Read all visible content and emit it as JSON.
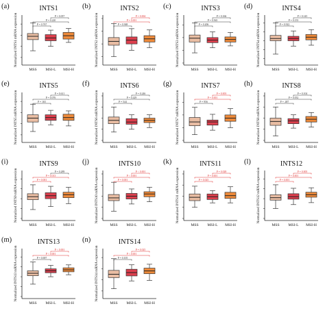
{
  "colors": {
    "mss": "#e9bda3",
    "msil": "#dc3f4d",
    "msih": "#ee8a3a",
    "sig": "#e03030",
    "nonsig": "#333333"
  },
  "chart_data": [
    {
      "type": "boxplot",
      "panel": "(a)",
      "title": "INTS1",
      "ylabel": "Normalized INTS1 mRNA expression",
      "categories": [
        "MSS",
        "MSI-L",
        "MSI-H"
      ],
      "ylim": [
        9,
        17
      ],
      "series": [
        {
          "name": "MSS",
          "whisker_low": 11.2,
          "q1": 13.2,
          "median": 13.8,
          "q3": 14.3,
          "whisker_high": 16.2
        },
        {
          "name": "MSI-L",
          "whisker_low": 12.0,
          "q1": 13.0,
          "median": 13.5,
          "q3": 14.1,
          "whisker_high": 14.9
        },
        {
          "name": "MSI-H",
          "whisker_low": 12.7,
          "q1": 13.3,
          "median": 13.9,
          "q3": 14.5,
          "whisker_high": 15.2
        }
      ],
      "comparisons": [
        {
          "pair": "MSS vs MSI-L",
          "label": "P = 0.767",
          "significant": false
        },
        {
          "pair": "MSS vs MSI-H",
          "label": "P = 0.220",
          "significant": false
        },
        {
          "pair": "MSI-L vs MSI-H",
          "label": "P = 0.057",
          "significant": false
        }
      ]
    },
    {
      "type": "boxplot",
      "panel": "(b)",
      "title": "INTS2",
      "ylabel": "Normalized INTS2 mRNA expression",
      "categories": [
        "MSS",
        "MSI-L",
        "MSI-H"
      ],
      "ylim": [
        7,
        14
      ],
      "series": [
        {
          "name": "MSS",
          "whisker_low": 8.0,
          "q1": 9.8,
          "median": 10.4,
          "q3": 11.0,
          "whisker_high": 13.2
        },
        {
          "name": "MSI-L",
          "whisker_low": 9.0,
          "q1": 10.0,
          "median": 10.6,
          "q3": 11.1,
          "whisker_high": 12.4
        },
        {
          "name": "MSI-H",
          "whisker_low": 9.4,
          "q1": 10.3,
          "median": 10.8,
          "q3": 11.3,
          "whisker_high": 12.2
        }
      ],
      "comparisons": [
        {
          "pair": "MSS vs MSI-L",
          "label": "P = 0.368",
          "significant": false
        },
        {
          "pair": "MSS vs MSI-H",
          "label": "P = 0.001",
          "significant": true
        },
        {
          "pair": "MSI-L vs MSI-H",
          "label": "P = 0.004",
          "significant": true
        }
      ]
    },
    {
      "type": "boxplot",
      "panel": "(c)",
      "title": "INTS3",
      "ylabel": "Normalized INTS3 mRNA expression",
      "categories": [
        "MSS",
        "MSI-L",
        "MSI-H"
      ],
      "ylim": [
        8,
        15
      ],
      "series": [
        {
          "name": "MSS",
          "whisker_low": 9.6,
          "q1": 11.3,
          "median": 11.9,
          "q3": 12.4,
          "whisker_high": 14.3
        },
        {
          "name": "MSI-L",
          "whisker_low": 10.4,
          "q1": 11.2,
          "median": 11.6,
          "q3": 12.0,
          "whisker_high": 12.9
        },
        {
          "name": "MSI-H",
          "whisker_low": 10.7,
          "q1": 11.3,
          "median": 11.7,
          "q3": 12.1,
          "whisker_high": 12.8
        }
      ],
      "comparisons": [
        {
          "pair": "MSS vs MSI-L",
          "label": "P = 0.206",
          "significant": false
        },
        {
          "pair": "MSS vs MSI-H",
          "label": "P = 0.565",
          "significant": false
        },
        {
          "pair": "MSI-L vs MSI-H",
          "label": "P = 0.166",
          "significant": false
        }
      ]
    },
    {
      "type": "boxplot",
      "panel": "(d)",
      "title": "INTS4",
      "ylabel": "Normalized INTS4 mRNA expression",
      "categories": [
        "MSS",
        "MSI-L",
        "MSI-H"
      ],
      "ylim": [
        5,
        15
      ],
      "series": [
        {
          "name": "MSS",
          "whisker_low": 7.0,
          "q1": 10.0,
          "median": 10.5,
          "q3": 11.2,
          "whisker_high": 14.0
        },
        {
          "name": "MSI-L",
          "whisker_low": 8.8,
          "q1": 10.0,
          "median": 10.5,
          "q3": 11.0,
          "whisker_high": 12.2
        },
        {
          "name": "MSI-H",
          "whisker_low": 9.0,
          "q1": 10.2,
          "median": 10.8,
          "q3": 11.4,
          "whisker_high": 12.5
        }
      ],
      "comparisons": [
        {
          "pair": "MSS vs MSI-L",
          "label": "P = 0.922",
          "significant": false
        },
        {
          "pair": "MSS vs MSI-H",
          "label": "P = 0.155",
          "significant": false
        },
        {
          "pair": "MSI-L vs MSI-H",
          "label": "P = 0.145",
          "significant": false
        }
      ]
    },
    {
      "type": "boxplot",
      "panel": "(e)",
      "title": "INTS5",
      "ylabel": "Normalized INTS5 mRNA expression",
      "categories": [
        "MSS",
        "MSI-L",
        "MSI-H"
      ],
      "ylim": [
        7,
        15
      ],
      "series": [
        {
          "name": "MSS",
          "whisker_low": 8.6,
          "q1": 10.3,
          "median": 11.0,
          "q3": 11.6,
          "whisker_high": 13.5
        },
        {
          "name": "MSI-L",
          "whisker_low": 9.8,
          "q1": 10.6,
          "median": 11.1,
          "q3": 11.6,
          "whisker_high": 12.4
        },
        {
          "name": "MSI-H",
          "whisker_low": 9.6,
          "q1": 10.6,
          "median": 11.1,
          "q3": 11.7,
          "whisker_high": 12.3
        }
      ],
      "comparisons": [
        {
          "pair": "MSS vs MSI-L",
          "label": "P = 165",
          "significant": false
        },
        {
          "pair": "MSS vs MSI-H",
          "label": "P = 0.076",
          "significant": false
        },
        {
          "pair": "MSI-L vs MSI-H",
          "label": "P = 0.611",
          "significant": false
        }
      ]
    },
    {
      "type": "boxplot",
      "panel": "(f)",
      "title": "INTS6",
      "ylabel": "Normalized INTS6 mRNA expression",
      "categories": [
        "MSS",
        "MSI-L",
        "MSI-H"
      ],
      "ylim": [
        8,
        16
      ],
      "series": [
        {
          "name": "MSS",
          "whisker_low": 9.5,
          "q1": 11.0,
          "median": 11.6,
          "q3": 12.2,
          "whisker_high": 14.0
        },
        {
          "name": "MSI-L",
          "whisker_low": 10.0,
          "q1": 10.9,
          "median": 11.3,
          "q3": 11.9,
          "whisker_high": 12.6
        },
        {
          "name": "MSI-H",
          "whisker_low": 10.3,
          "q1": 11.2,
          "median": 11.6,
          "q3": 12.0,
          "whisker_high": 12.6
        }
      ],
      "comparisons": [
        {
          "pair": "MSS vs MSI-L",
          "label": "P = 544",
          "significant": false
        },
        {
          "pair": "MSS vs MSI-H",
          "label": "P = 0.429",
          "significant": false
        },
        {
          "pair": "MSI-L vs MSI-H",
          "label": "P = 0.246",
          "significant": false
        }
      ]
    },
    {
      "type": "boxplot",
      "panel": "(g)",
      "title": "INTS7",
      "ylabel": "Normalized INTS7 mRNA expression",
      "categories": [
        "MSS",
        "MSI-L",
        "MSI-H"
      ],
      "ylim": [
        8,
        15
      ],
      "series": [
        {
          "name": "MSS",
          "whisker_low": 8.9,
          "q1": 10.3,
          "median": 10.9,
          "q3": 11.6,
          "whisker_high": 13.2
        },
        {
          "name": "MSI-L",
          "whisker_low": 9.6,
          "q1": 10.4,
          "median": 10.9,
          "q3": 11.2,
          "whisker_high": 12.1
        },
        {
          "name": "MSI-H",
          "whisker_low": 10.0,
          "q1": 11.0,
          "median": 11.5,
          "q3": 12.0,
          "whisker_high": 13.0
        }
      ],
      "comparisons": [
        {
          "pair": "MSS vs MSI-L",
          "label": "P = 956",
          "significant": false
        },
        {
          "pair": "MSS vs MSI-H",
          "label": "P = 0.001",
          "significant": true
        },
        {
          "pair": "MSI-L vs MSI-H",
          "label": "P = 0.003",
          "significant": true
        }
      ]
    },
    {
      "type": "boxplot",
      "panel": "(h)",
      "title": "INTS8",
      "ylabel": "Normalized INTS8 mRNA expression",
      "categories": [
        "MSS",
        "MSI-L",
        "MSI-H"
      ],
      "ylim": [
        8,
        16
      ],
      "series": [
        {
          "name": "MSS",
          "whisker_low": 8.8,
          "q1": 10.7,
          "median": 11.4,
          "q3": 12.0,
          "whisker_high": 14.0
        },
        {
          "name": "MSI-L",
          "whisker_low": 10.2,
          "q1": 11.0,
          "median": 11.5,
          "q3": 11.9,
          "whisker_high": 12.6
        },
        {
          "name": "MSI-H",
          "whisker_low": 10.4,
          "q1": 11.3,
          "median": 11.8,
          "q3": 12.3,
          "whisker_high": 13.0
        }
      ],
      "comparisons": [
        {
          "pair": "MSS vs MSI-L",
          "label": "P = .487",
          "significant": false
        },
        {
          "pair": "MSS vs MSI-H",
          "label": "P = 0.052",
          "significant": false
        },
        {
          "pair": "MSI-L vs MSI-H",
          "label": "P = 0.104",
          "significant": false
        }
      ]
    },
    {
      "type": "boxplot",
      "panel": "(i)",
      "title": "INTS9",
      "ylabel": "Normalized INTS9 mRNA expression",
      "categories": [
        "MSS",
        "MSI-L",
        "MSI-H"
      ],
      "ylim": [
        6,
        15
      ],
      "series": [
        {
          "name": "MSS",
          "whisker_low": 7.8,
          "q1": 9.8,
          "median": 10.4,
          "q3": 11.0,
          "whisker_high": 12.8
        },
        {
          "name": "MSI-L",
          "whisker_low": 8.4,
          "q1": 10.0,
          "median": 10.6,
          "q3": 11.2,
          "whisker_high": 12.5
        },
        {
          "name": "MSI-H",
          "whisker_low": 9.0,
          "q1": 10.2,
          "median": 10.8,
          "q3": 11.3,
          "whisker_high": 12.3
        }
      ],
      "comparisons": [
        {
          "pair": "MSS vs MSI-L",
          "label": "P = 0.001",
          "significant": true
        },
        {
          "pair": "MSS vs MSI-H",
          "label": "P = 0.013",
          "significant": true
        },
        {
          "pair": "MSI-L vs MSI-H",
          "label": "P = 0.289",
          "significant": false
        }
      ]
    },
    {
      "type": "boxplot",
      "panel": "(j)",
      "title": "INTS10",
      "ylabel": "Normalized INTS10 mRNA expression",
      "categories": [
        "MSS",
        "MSI-L",
        "MSI-H"
      ],
      "ylim": [
        8,
        16
      ],
      "series": [
        {
          "name": "MSS",
          "whisker_low": 9.3,
          "q1": 11.2,
          "median": 11.7,
          "q3": 12.3,
          "whisker_high": 14.5
        },
        {
          "name": "MSI-L",
          "whisker_low": 10.6,
          "q1": 11.5,
          "median": 12.0,
          "q3": 12.5,
          "whisker_high": 13.3
        },
        {
          "name": "MSI-H",
          "whisker_low": 11.0,
          "q1": 11.9,
          "median": 12.4,
          "q3": 12.8,
          "whisker_high": 13.6
        }
      ],
      "comparisons": [
        {
          "pair": "MSS vs MSI-L",
          "label": "P = 0.001",
          "significant": true
        },
        {
          "pair": "MSS vs MSI-H",
          "label": "P < 0.001",
          "significant": true
        },
        {
          "pair": "MSI-L vs MSI-H",
          "label": "P < 0.001",
          "significant": true
        }
      ]
    },
    {
      "type": "boxplot",
      "panel": "(k)",
      "title": "INTS11",
      "ylabel": "Normalized INTS11 mRNA expression",
      "categories": [
        "MSS",
        "MSI-L",
        "MSI-H"
      ],
      "ylim": [
        8,
        16
      ],
      "series": [
        {
          "name": "MSS",
          "whisker_low": 10.0,
          "q1": 11.2,
          "median": 11.8,
          "q3": 12.4,
          "whisker_high": 13.8
        },
        {
          "name": "MSI-L",
          "whisker_low": 10.8,
          "q1": 11.4,
          "median": 11.9,
          "q3": 12.4,
          "whisker_high": 13.0
        },
        {
          "name": "MSI-H",
          "whisker_low": 10.8,
          "q1": 11.6,
          "median": 12.1,
          "q3": 12.7,
          "whisker_high": 13.7
        }
      ],
      "comparisons": [
        {
          "pair": "MSS vs MSI-L",
          "label": "P = 0.025",
          "significant": true
        },
        {
          "pair": "MSS vs MSI-H",
          "label": "P = 0.001",
          "significant": true
        },
        {
          "pair": "MSI-L vs MSI-H",
          "label": "P = 0.028",
          "significant": true
        }
      ]
    },
    {
      "type": "boxplot",
      "panel": "(l)",
      "title": "INTS12",
      "ylabel": "Normalized INTS12 mRNA expression",
      "categories": [
        "MSS",
        "MSI-L",
        "MSI-H"
      ],
      "ylim": [
        6,
        15
      ],
      "series": [
        {
          "name": "MSS",
          "whisker_low": 8.0,
          "q1": 9.7,
          "median": 10.2,
          "q3": 10.8,
          "whisker_high": 12.8
        },
        {
          "name": "MSI-L",
          "whisker_low": 8.8,
          "q1": 9.9,
          "median": 10.4,
          "q3": 11.0,
          "whisker_high": 12.1
        },
        {
          "name": "MSI-H",
          "whisker_low": 9.2,
          "q1": 10.3,
          "median": 10.8,
          "q3": 11.3,
          "whisker_high": 12.2
        }
      ],
      "comparisons": [
        {
          "pair": "MSS vs MSI-L",
          "label": "P = 0.001",
          "significant": true
        },
        {
          "pair": "MSS vs MSI-H",
          "label": "P = 0.001",
          "significant": true
        },
        {
          "pair": "MSI-L vs MSI-H",
          "label": "P = 0.005",
          "significant": true
        }
      ]
    },
    {
      "type": "boxplot",
      "panel": "(m)",
      "title": "INTS13",
      "ylabel": "Normalized INTS13 mRNA expression",
      "categories": [
        "MSS",
        "MSI-L",
        "MSI-H"
      ],
      "ylim": [
        6,
        15
      ],
      "series": [
        {
          "name": "MSS",
          "whisker_low": 8.5,
          "q1": 10.2,
          "median": 10.7,
          "q3": 11.2,
          "whisker_high": 13.0
        },
        {
          "name": "MSI-L",
          "whisker_low": 10.0,
          "q1": 10.8,
          "median": 11.2,
          "q3": 11.6,
          "whisker_high": 12.3
        },
        {
          "name": "MSI-H",
          "whisker_low": 10.4,
          "q1": 11.0,
          "median": 11.4,
          "q3": 11.8,
          "whisker_high": 12.4
        }
      ],
      "comparisons": [
        {
          "pair": "MSS vs MSI-L",
          "label": "P = 0.697",
          "significant": false
        },
        {
          "pair": "MSS vs MSI-H",
          "label": "P < 0.001",
          "significant": true
        },
        {
          "pair": "MSI-L vs MSI-H",
          "label": "P < 0.001",
          "significant": true
        }
      ]
    },
    {
      "type": "boxplot",
      "panel": "(n)",
      "title": "INTS14",
      "ylabel": "Normalized INTS14 mRNA expression",
      "categories": [
        "MSS",
        "MSI-L",
        "MSI-H"
      ],
      "ylim": [
        7,
        15
      ],
      "series": [
        {
          "name": "MSS",
          "whisker_low": 8.4,
          "q1": 10.4,
          "median": 11.0,
          "q3": 11.7,
          "whisker_high": 13.8
        },
        {
          "name": "MSI-L",
          "whisker_low": 9.8,
          "q1": 10.7,
          "median": 11.3,
          "q3": 11.9,
          "whisker_high": 12.7
        },
        {
          "name": "MSI-H",
          "whisker_low": 9.9,
          "q1": 11.1,
          "median": 11.6,
          "q3": 12.1,
          "whisker_high": 12.8
        }
      ],
      "comparisons": [
        {
          "pair": "MSS vs MSI-L",
          "label": "P = 0.105",
          "significant": false
        },
        {
          "pair": "MSS vs MSI-H",
          "label": "P < 0.001",
          "significant": true
        },
        {
          "pair": "MSI-L vs MSI-H",
          "label": "P = 0.025",
          "significant": true
        }
      ]
    }
  ]
}
